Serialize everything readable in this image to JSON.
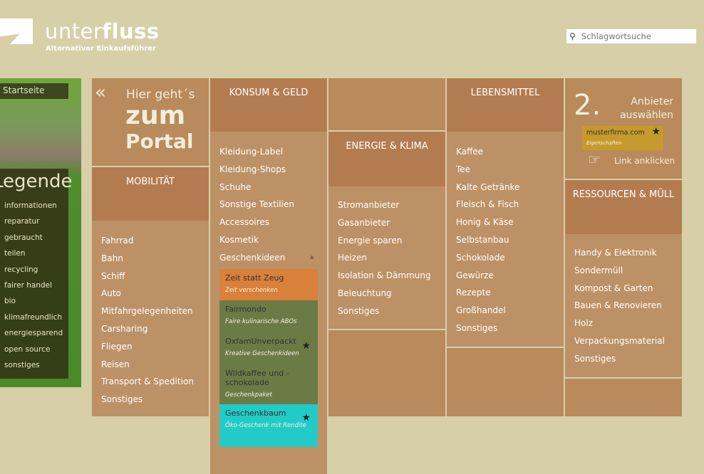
{
  "header": {
    "logo_light": "unter",
    "logo_bold": "fluss",
    "tagline": "Alternativer Einkaufsführer",
    "search_placeholder": "Schlagwortsuche"
  },
  "sidebar": {
    "start": "Startseite",
    "legend_title": "Legende",
    "legend_items": [
      "informationen",
      "reparatur",
      "gebraucht",
      "teilen",
      "recycling",
      "fairer handel",
      "bio",
      "klimafreundlich",
      "energiesparend",
      "open source",
      "sonstiges"
    ]
  },
  "portal": {
    "line1": "Hier geht´s",
    "line2": "zum",
    "line3": "Portal"
  },
  "mobilitaet": {
    "title": "MOBILITÄT",
    "items": [
      "Fahrrad",
      "Bahn",
      "Schiff",
      "Auto",
      "Mitfahrgelegenheiten",
      "Carsharing",
      "Fliegen",
      "Reisen",
      "Transport & Spedition",
      "Sonstiges"
    ]
  },
  "konsum": {
    "title": "KONSUM & GELD",
    "items": [
      "Kleidung-Label",
      "Kleidung-Shops",
      "Schuhe",
      "Sonstige Textilien",
      "Accessoires",
      "Kosmetik",
      "Geschenkideen"
    ],
    "sub": [
      {
        "name": "Zeit statt Zeug",
        "desc": "Zeit verschenken",
        "color": "#d9803a",
        "star": false
      },
      {
        "name": "Fairmondo",
        "desc": "Faire kulinarische ABOs",
        "color": "#6b7b45",
        "star": false
      },
      {
        "name": "OxfamUnverpackt",
        "desc": "Kreative Geschenkideen",
        "color": "#6b7b45",
        "star": true
      },
      {
        "name": "Wildkaffee und -schokolade",
        "desc": "Geschenkpaket",
        "color": "#6b7b45",
        "star": false
      },
      {
        "name": "Geschenkbaum",
        "desc": "Öko-Geschenk mit Rendite",
        "color": "#22cbc8",
        "star": true
      }
    ]
  },
  "energie": {
    "title": "ENERGIE & KLIMA",
    "items": [
      "Stromanbieter",
      "Gasanbieter",
      "Energie sparen",
      "Heizen",
      "Isolation & Dämmung",
      "Beleuchtung",
      "Sonstiges"
    ]
  },
  "lebensmittel": {
    "title": "LEBENSMITTEL",
    "items": [
      "Kaffee",
      "Tee",
      "Kalte Getränke",
      "Fleisch & Fisch",
      "Honig & Käse",
      "Selbstanbau",
      "Schokolade",
      "Gewürze",
      "Rezepte",
      "Großhandel",
      "Sonstiges"
    ]
  },
  "anbieter": {
    "num": "2.",
    "line1": "Anbieter",
    "line2": "auswählen",
    "demo_name": "musterfirma.com",
    "demo_desc": "Eigenschaften",
    "hint": "Link anklicken"
  },
  "ressourcen": {
    "title": "RESSOURCEN & MÜLL",
    "items": [
      "Handy & Elektronik",
      "Sondermüll",
      "Kompost & Garten",
      "Bauen & Renovieren",
      "Holz",
      "Verpackungsmaterial",
      "Sonstiges"
    ]
  }
}
